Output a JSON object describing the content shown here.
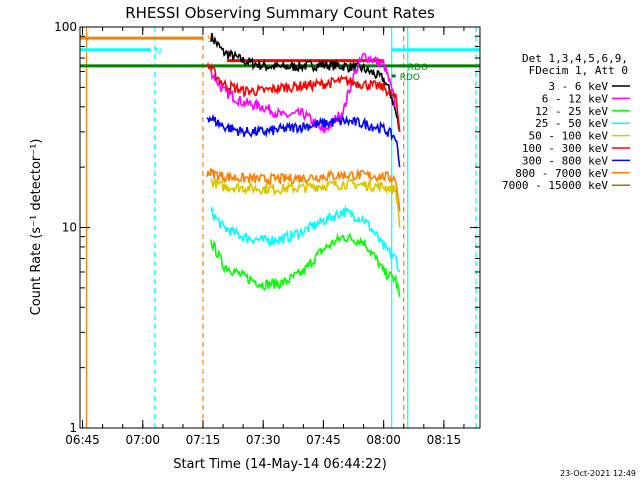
{
  "chart_data": {
    "type": "line",
    "title": "RHESSI Observing Summary Count Rates",
    "xlabel": "Start Time (14-May-14 06:44:22)",
    "ylabel": "Count Rate (s⁻¹ detector⁻¹)",
    "x_ticks": [
      "06:45",
      "07:00",
      "07:15",
      "07:30",
      "07:45",
      "08:00",
      "08:15"
    ],
    "y_ticks": [
      "1",
      "10",
      "100"
    ],
    "y_scale": "log",
    "ylim": [
      1,
      100
    ],
    "xlim": [
      "06:44:22",
      "08:24:00"
    ],
    "legend_placement": "right",
    "legend_header": [
      "Det 1,3,4,5,6,9,",
      "FDecim 1, Att 0"
    ],
    "series": [
      {
        "name": "3 - 6 keV",
        "color": "#000000",
        "x": [
          "07:17",
          "07:20",
          "07:25",
          "07:30",
          "07:35",
          "07:40",
          "07:45",
          "07:50",
          "07:55",
          "08:00",
          "08:02",
          "08:04"
        ],
        "y": [
          90,
          75,
          68,
          64,
          63,
          64,
          65,
          64,
          62,
          55,
          45,
          30
        ]
      },
      {
        "name": "6 - 12 keV",
        "color": "#ff00ff",
        "x": [
          "07:17",
          "07:20",
          "07:25",
          "07:30",
          "07:35",
          "07:40",
          "07:45",
          "07:50",
          "07:53",
          "07:55",
          "08:00",
          "08:03"
        ],
        "y": [
          60,
          48,
          42,
          40,
          36,
          37,
          30,
          38,
          60,
          72,
          65,
          40
        ]
      },
      {
        "name": "12 - 25 keV",
        "color": "#00ff00",
        "x": [
          "07:17",
          "07:20",
          "07:25",
          "07:30",
          "07:35",
          "07:40",
          "07:45",
          "07:50",
          "07:55",
          "08:00",
          "08:03",
          "08:04"
        ],
        "y": [
          8.5,
          6.5,
          5.7,
          5.2,
          5.3,
          6.0,
          7.8,
          9.0,
          8.5,
          6.0,
          5.5,
          4.5
        ]
      },
      {
        "name": "25 - 50 keV",
        "color": "#00ffff",
        "x": [
          "07:17",
          "07:20",
          "07:25",
          "07:30",
          "07:35",
          "07:40",
          "07:45",
          "07:50",
          "07:55",
          "08:00",
          "08:03",
          "08:04"
        ],
        "y": [
          12,
          10,
          9.0,
          8.6,
          8.8,
          9.6,
          10.8,
          12,
          11,
          8.0,
          7.0,
          6.0
        ]
      },
      {
        "name": "50 - 100 keV",
        "color": "#d8c800",
        "x": [
          "07:17",
          "07:20",
          "07:25",
          "07:30",
          "07:35",
          "07:40",
          "07:45",
          "07:50",
          "07:55",
          "08:00",
          "08:03",
          "08:04"
        ],
        "y": [
          17,
          16,
          15.8,
          15.6,
          15.6,
          15.8,
          16.2,
          16.5,
          16.3,
          16.0,
          15.5,
          10
        ]
      },
      {
        "name": "100 - 300 keV",
        "color": "#ff0000",
        "x": [
          "07:16",
          "07:20",
          "07:25",
          "07:30",
          "07:35",
          "07:40",
          "07:45",
          "07:50",
          "07:55",
          "08:00",
          "08:03",
          "08:04"
        ],
        "y": [
          65,
          52,
          48,
          48,
          50,
          51,
          52,
          54,
          52,
          50,
          44,
          30
        ]
      },
      {
        "name": "300 - 800 keV",
        "color": "#0000ff",
        "x": [
          "07:16",
          "07:20",
          "07:25",
          "07:30",
          "07:35",
          "07:40",
          "07:45",
          "07:50",
          "07:55",
          "08:00",
          "08:03",
          "08:04"
        ],
        "y": [
          36,
          32,
          30,
          30,
          31,
          32,
          33,
          34,
          33,
          31,
          28,
          20
        ]
      },
      {
        "name": "800 - 7000 keV",
        "color": "#ff8000",
        "x": [
          "07:16",
          "07:20",
          "07:25",
          "07:30",
          "07:35",
          "07:40",
          "07:45",
          "07:50",
          "07:55",
          "08:00",
          "08:03",
          "08:04"
        ],
        "y": [
          19,
          18,
          17.6,
          17.4,
          17.5,
          17.7,
          18,
          18.3,
          18.2,
          18,
          17.5,
          12
        ]
      },
      {
        "name": "7000 - 15000 keV",
        "color": "#a07000",
        "x": [],
        "y": []
      }
    ],
    "flag_bars": [
      {
        "label": "S",
        "color": "#ff8000",
        "x_start": "06:44:22",
        "x_end": "07:15:00",
        "level": 88
      },
      {
        "label": "N",
        "color": "#00ffff",
        "x_start": "06:44:22",
        "x_end": "07:02:00",
        "level": 77
      },
      {
        "label": "",
        "color": "#00ffff",
        "x_start": "08:02:00",
        "x_end": "08:24:00",
        "level": 77
      },
      {
        "label": "",
        "color": "#008000",
        "x_start": "06:44:22",
        "x_end": "08:24:00",
        "level": 64
      },
      {
        "label": "",
        "color": "#ff0000",
        "x_start": "07:21:00",
        "x_end": "08:00:00",
        "level": 68
      },
      {
        "label": "RDO",
        "color": "#008000",
        "x_start": "08:04:00",
        "x_end": "08:05:00",
        "level": 64
      },
      {
        "label": "RDO",
        "color": "#008000",
        "x_start": "08:02:00",
        "x_end": "08:03:00",
        "level": 57
      }
    ],
    "vlines": [
      {
        "x": "06:46:00",
        "color": "#ff8000",
        "style": "solid"
      },
      {
        "x": "07:03:00",
        "color": "#00ffff",
        "style": "dashed"
      },
      {
        "x": "07:15:00",
        "color": "#ff8000",
        "style": "dashed"
      },
      {
        "x": "08:02:00",
        "color": "#00ffff",
        "style": "solid"
      },
      {
        "x": "08:05:00",
        "color": "#ff8000",
        "style": "dashed"
      },
      {
        "x": "08:06:00",
        "color": "#00ffff",
        "style": "solid"
      },
      {
        "x": "08:23:00",
        "color": "#00ffff",
        "style": "dashed"
      }
    ]
  },
  "footer": {
    "date": "23-Oct-2021 12:49"
  }
}
